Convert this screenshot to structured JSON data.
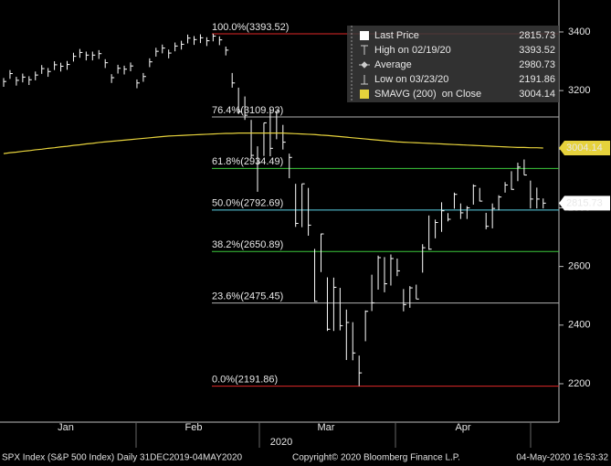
{
  "chart_data": {
    "type": "ohlc",
    "ylim": [
      2069,
      3509
    ],
    "yticks": [
      2200,
      2400,
      2600,
      2800,
      3000,
      3200,
      3400
    ],
    "months": [
      "Jan",
      "Feb",
      "Mar",
      "Apr"
    ],
    "year": "2020",
    "series": [
      {
        "color": "#ffffff",
        "high": [
          3243,
          3270,
          3247,
          3258,
          3249,
          3265,
          3287,
          3277,
          3300,
          3295,
          3301,
          3329,
          3342,
          3333,
          3333,
          3338,
          3307,
          3256,
          3288,
          3285,
          3296,
          3238,
          3260,
          3310,
          3346,
          3357,
          3340,
          3364,
          3370,
          3391,
          3386,
          3392,
          3382,
          3394,
          3385,
          3350,
          3260,
          3210,
          3180,
          3100,
          3010,
          3090,
          3137,
          3130,
          3083,
          2985,
          2882,
          2882,
          2868,
          2660,
          2712,
          2563,
          2562,
          2527,
          2453,
          2410,
          2296,
          2450,
          2572,
          2637,
          2632,
          2641,
          2627,
          2523,
          2533,
          2538,
          2676,
          2774,
          2760,
          2819,
          2782,
          2852,
          2815,
          2806,
          2880,
          2868,
          2783,
          2815,
          2843,
          2888,
          2925,
          2954,
          2965,
          2893,
          2869,
          2832
        ],
        "low": [
          3213,
          3240,
          3217,
          3228,
          3219,
          3235,
          3257,
          3247,
          3270,
          3265,
          3271,
          3299,
          3312,
          3303,
          3303,
          3308,
          3277,
          3226,
          3258,
          3255,
          3266,
          3208,
          3230,
          3280,
          3316,
          3327,
          3310,
          3334,
          3340,
          3361,
          3356,
          3362,
          3352,
          3368,
          3355,
          3320,
          3210,
          3120,
          3100,
          2970,
          2855,
          2977,
          2976,
          3034,
          2999,
          2901,
          2735,
          2734,
          2705,
          2479,
          2581,
          2380,
          2380,
          2382,
          2281,
          2280,
          2192,
          2345,
          2448,
          2521,
          2512,
          2535,
          2567,
          2447,
          2459,
          2489,
          2579,
          2657,
          2696,
          2718,
          2754,
          2797,
          2762,
          2762,
          2811,
          2822,
          2727,
          2730,
          2792,
          2852,
          2862,
          2891,
          2912,
          2798,
          2798,
          2798
        ],
        "close": [
          3231,
          3258,
          3235,
          3246,
          3237,
          3253,
          3275,
          3265,
          3288,
          3283,
          3289,
          3317,
          3330,
          3321,
          3321,
          3326,
          3295,
          3244,
          3276,
          3273,
          3284,
          3226,
          3248,
          3298,
          3334,
          3345,
          3328,
          3352,
          3358,
          3379,
          3374,
          3380,
          3370,
          3386,
          3373,
          3338,
          3226,
          3128,
          3116,
          2979,
          2954,
          3090,
          3003,
          3130,
          3024,
          2972,
          2747,
          2882,
          2741,
          2481,
          2711,
          2386,
          2529,
          2398,
          2409,
          2305,
          2237,
          2447,
          2476,
          2630,
          2541,
          2627,
          2585,
          2470,
          2527,
          2489,
          2664,
          2659,
          2750,
          2790,
          2761,
          2846,
          2783,
          2800,
          2875,
          2823,
          2737,
          2798,
          2837,
          2878,
          2863,
          2939,
          2912,
          2830,
          2830,
          2816
        ]
      },
      {
        "color": "#e6d23c",
        "values": [
          2985,
          2988,
          2990,
          2993,
          2995,
          2998,
          3000,
          3003,
          3005,
          3008,
          3010,
          3013,
          3015,
          3018,
          3020,
          3023,
          3025,
          3027,
          3029,
          3031,
          3033,
          3035,
          3037,
          3039,
          3041,
          3043,
          3045,
          3046,
          3047,
          3048,
          3049,
          3050,
          3051,
          3052,
          3053,
          3054,
          3054,
          3055,
          3055,
          3055,
          3055,
          3055,
          3055,
          3055,
          3055,
          3054,
          3053,
          3052,
          3051,
          3050,
          3048,
          3047,
          3045,
          3043,
          3041,
          3039,
          3037,
          3035,
          3033,
          3031,
          3029,
          3027,
          3025,
          3024,
          3023,
          3022,
          3021,
          3020,
          3019,
          3018,
          3017,
          3016,
          3015,
          3014,
          3013,
          3012,
          3011,
          3010,
          3009,
          3008,
          3007,
          3006,
          3006,
          3005,
          3005,
          3004.14
        ]
      }
    ],
    "fib_levels": [
      {
        "label": "100.0%(3393.52)",
        "value": 3393.52,
        "color": "#e02828"
      },
      {
        "label": "76.4%(3109.93)",
        "value": 3109.93,
        "color": "#b0b0b0"
      },
      {
        "label": "61.8%(2934.49)",
        "value": 2934.49,
        "color": "#3cc83c"
      },
      {
        "label": "50.0%(2792.69)",
        "value": 2792.69,
        "color": "#5ad2e6"
      },
      {
        "label": "38.2%(2650.89)",
        "value": 2650.89,
        "color": "#3cc83c"
      },
      {
        "label": "23.6%(2475.45)",
        "value": 2475.45,
        "color": "#b0b0b0"
      },
      {
        "label": "0.0%(2191.86)",
        "value": 2191.86,
        "color": "#e02828"
      }
    ],
    "legend": [
      {
        "label": "Last Price",
        "value": "2815.73"
      },
      {
        "label": "High on 02/19/20",
        "value": "3393.52"
      },
      {
        "label": "Average",
        "value": "2980.73"
      },
      {
        "label": "Low on 03/23/20",
        "value": "2191.86"
      },
      {
        "label": "SMAVG (200)  on Close",
        "value": "3004.14"
      }
    ],
    "tags": [
      {
        "value": 3004.14,
        "color": "#e6d23c"
      },
      {
        "value": 2815.73,
        "color": "#ffffff"
      }
    ],
    "footer": {
      "left": "SPX Index (S&P 500 Index)  Daily 31DEC2019-04MAY2020",
      "center": "Copyright© 2020 Bloomberg Finance L.P.",
      "right": "04-May-2020 16:53:32"
    }
  }
}
